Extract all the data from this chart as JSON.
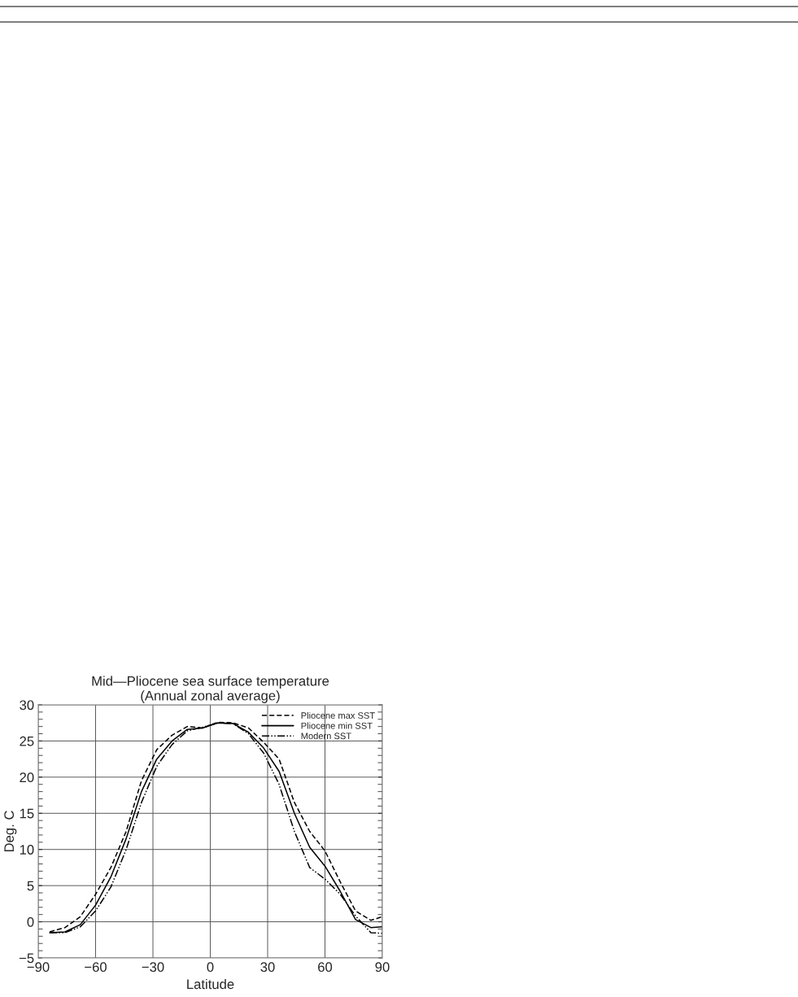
{
  "chart_data": {
    "type": "line",
    "title": "Mid—Pliocene sea surface temperature",
    "subtitle": "(Annual zonal average)",
    "xlabel": "Latitude",
    "ylabel": "Deg. C",
    "x": [
      -84,
      -76,
      -68,
      -60,
      -52,
      -44,
      -36,
      -28,
      -20,
      -12,
      -4,
      4,
      12,
      20,
      28,
      36,
      44,
      52,
      60,
      68,
      76,
      84,
      90
    ],
    "series": [
      {
        "name": "Pliocene max SST",
        "color": "#000000",
        "line_style": "dashed",
        "values": [
          -1.4,
          -0.8,
          0.7,
          3.8,
          7.5,
          12.5,
          19.5,
          23.8,
          25.8,
          27.0,
          26.8,
          27.6,
          27.5,
          26.8,
          24.8,
          22.5,
          16.5,
          12.5,
          9.8,
          5.5,
          1.5,
          0.2,
          0.7
        ]
      },
      {
        "name": "Pliocene min SST",
        "color": "#000000",
        "line_style": "solid",
        "values": [
          -1.5,
          -1.4,
          -0.4,
          2.3,
          6.2,
          11.5,
          18.0,
          22.5,
          25.0,
          26.6,
          26.8,
          27.5,
          27.4,
          26.2,
          24.0,
          20.8,
          15.0,
          10.3,
          7.7,
          4.2,
          0.3,
          -0.8,
          -0.7
        ]
      },
      {
        "name": "Modern SST",
        "color": "#000000",
        "line_style": "dashdotdot",
        "values": [
          -1.5,
          -1.5,
          -0.7,
          1.5,
          4.8,
          10.0,
          16.5,
          21.5,
          24.5,
          26.4,
          26.9,
          27.5,
          27.4,
          26.0,
          23.3,
          19.0,
          12.5,
          7.5,
          5.9,
          3.8,
          0.8,
          -1.5,
          -1.6
        ]
      }
    ],
    "xlim": [
      -90,
      90
    ],
    "xticks": [
      {
        "value": -90,
        "label": "−90"
      },
      {
        "value": -60,
        "label": "−60"
      },
      {
        "value": -30,
        "label": "−30"
      },
      0,
      30,
      60,
      90
    ],
    "ylim": [
      -5,
      30
    ],
    "yticks": [
      {
        "value": -5,
        "label": "−5"
      },
      0,
      5,
      10,
      15,
      20,
      25,
      30
    ],
    "grid": true,
    "legend": "top right",
    "marker": "none"
  }
}
